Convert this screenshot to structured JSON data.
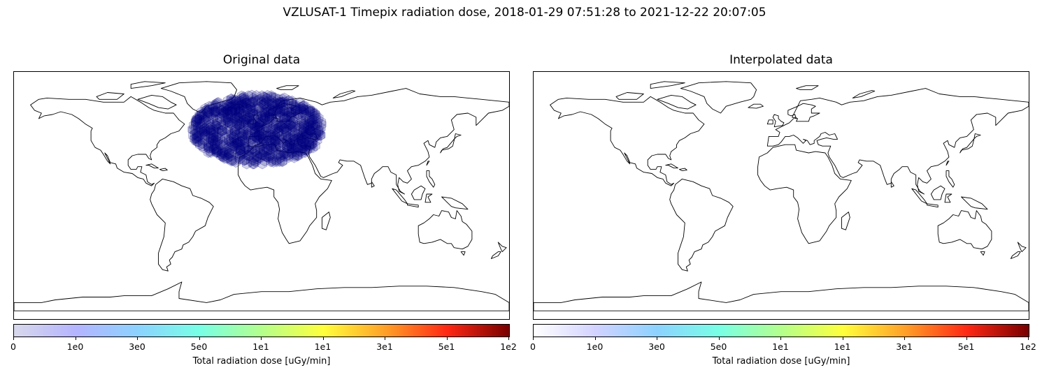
{
  "figure": {
    "title": "VZLUSAT-1 Timepix radiation dose, 2018-01-29 07:51:28 to 2021-12-22 20:07:05"
  },
  "panels": [
    {
      "title": "Original data",
      "colorbar": {
        "label": "Total radiation dose [uGy/min]",
        "ticks": [
          "0",
          "1e0",
          "3e0",
          "5e0",
          "1e1",
          "1e1",
          "3e1",
          "5e1",
          "1e2"
        ],
        "colors": [
          "#d8d8ec",
          "#b4b4ff",
          "#8cd2ff",
          "#78ffe6",
          "#b4ff8c",
          "#ffff3c",
          "#ffa028",
          "#ff2814",
          "#780000"
        ]
      },
      "markers": {
        "color": "#000080",
        "region": "North Atlantic / Europe",
        "lon_range": [
          -50,
          45
        ],
        "lat_range": [
          15,
          80
        ]
      }
    },
    {
      "title": "Interpolated data",
      "colorbar": {
        "label": "Total radiation dose [uGy/min]",
        "ticks": [
          "0",
          "1e0",
          "3e0",
          "5e0",
          "1e1",
          "1e1",
          "3e1",
          "5e1",
          "1e2"
        ],
        "colors": [
          "#ffffff",
          "#d2d2ff",
          "#8cd2ff",
          "#78ffe6",
          "#b4ff8c",
          "#ffff3c",
          "#ffa028",
          "#ff2814",
          "#780000"
        ]
      }
    }
  ],
  "map": {
    "projection": "PlateCarree",
    "lon_range": [
      -180,
      180
    ],
    "lat_range": [
      -90,
      90
    ],
    "coastline_color": "#000000"
  }
}
